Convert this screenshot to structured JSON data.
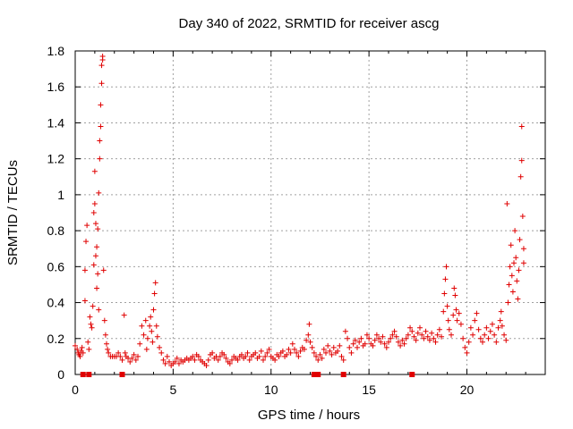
{
  "chart_data": {
    "type": "scatter",
    "title": "Day 340 of 2022, SRMTID for receiver ascg",
    "xlabel": "GPS time / hours",
    "ylabel": "SRMTID / TECUs",
    "xlim": [
      0,
      24
    ],
    "ylim": [
      0,
      1.8
    ],
    "xticks": [
      0,
      5,
      10,
      15,
      20
    ],
    "xtick_labels": [
      "0",
      "5",
      "10",
      "15",
      "20"
    ],
    "yticks": [
      0,
      0.2,
      0.4,
      0.6,
      0.8,
      1.0,
      1.2,
      1.4,
      1.6,
      1.8
    ],
    "ytick_labels": [
      "0",
      "0.2",
      "0.4",
      "0.6",
      "0.8",
      "1",
      "1.2",
      "1.4",
      "1.6",
      "1.8"
    ],
    "grid": true,
    "marker": "plus",
    "color": "#e00000",
    "zero_markers_x": [
      0.4,
      0.7,
      2.4,
      12.2,
      12.4,
      13.7,
      17.2
    ],
    "series": [
      {
        "name": "SRMTID",
        "points": [
          [
            0.0,
            0.16
          ],
          [
            0.1,
            0.14
          ],
          [
            0.15,
            0.12
          ],
          [
            0.2,
            0.11
          ],
          [
            0.25,
            0.1
          ],
          [
            0.3,
            0.13
          ],
          [
            0.35,
            0.15
          ],
          [
            0.4,
            0.12
          ],
          [
            0.5,
            0.41
          ],
          [
            0.5,
            0.58
          ],
          [
            0.55,
            0.74
          ],
          [
            0.6,
            0.83
          ],
          [
            0.65,
            0.18
          ],
          [
            0.7,
            0.14
          ],
          [
            0.75,
            0.32
          ],
          [
            0.8,
            0.28
          ],
          [
            0.85,
            0.26
          ],
          [
            0.9,
            0.38
          ],
          [
            0.95,
            0.61
          ],
          [
            0.95,
            0.9
          ],
          [
            1.0,
            1.13
          ],
          [
            1.0,
            0.95
          ],
          [
            1.05,
            0.66
          ],
          [
            1.05,
            0.84
          ],
          [
            1.1,
            0.48
          ],
          [
            1.1,
            0.71
          ],
          [
            1.15,
            0.56
          ],
          [
            1.15,
            0.81
          ],
          [
            1.2,
            0.36
          ],
          [
            1.2,
            1.01
          ],
          [
            1.25,
            1.2
          ],
          [
            1.25,
            1.3
          ],
          [
            1.3,
            1.38
          ],
          [
            1.3,
            1.5
          ],
          [
            1.35,
            1.62
          ],
          [
            1.35,
            1.72
          ],
          [
            1.4,
            1.75
          ],
          [
            1.4,
            1.77
          ],
          [
            1.45,
            0.58
          ],
          [
            1.5,
            0.3
          ],
          [
            1.55,
            0.22
          ],
          [
            1.6,
            0.17
          ],
          [
            1.65,
            0.14
          ],
          [
            1.7,
            0.12
          ],
          [
            1.8,
            0.1
          ],
          [
            1.9,
            0.1
          ],
          [
            2.0,
            0.1
          ],
          [
            2.1,
            0.1
          ],
          [
            2.2,
            0.12
          ],
          [
            2.3,
            0.1
          ],
          [
            2.4,
            0.08
          ],
          [
            2.5,
            0.33
          ],
          [
            2.55,
            0.12
          ],
          [
            2.6,
            0.1
          ],
          [
            2.7,
            0.09
          ],
          [
            2.8,
            0.07
          ],
          [
            2.9,
            0.09
          ],
          [
            3.0,
            0.11
          ],
          [
            3.1,
            0.08
          ],
          [
            3.2,
            0.1
          ],
          [
            3.3,
            0.17
          ],
          [
            3.4,
            0.27
          ],
          [
            3.5,
            0.22
          ],
          [
            3.6,
            0.3
          ],
          [
            3.65,
            0.14
          ],
          [
            3.7,
            0.2
          ],
          [
            3.8,
            0.27
          ],
          [
            3.85,
            0.32
          ],
          [
            3.9,
            0.24
          ],
          [
            3.95,
            0.18
          ],
          [
            4.0,
            0.36
          ],
          [
            4.05,
            0.45
          ],
          [
            4.1,
            0.51
          ],
          [
            4.15,
            0.27
          ],
          [
            4.2,
            0.21
          ],
          [
            4.3,
            0.15
          ],
          [
            4.4,
            0.12
          ],
          [
            4.5,
            0.08
          ],
          [
            4.6,
            0.06
          ],
          [
            4.7,
            0.1
          ],
          [
            4.8,
            0.07
          ],
          [
            4.9,
            0.05
          ],
          [
            5.0,
            0.06
          ],
          [
            5.1,
            0.07
          ],
          [
            5.2,
            0.09
          ],
          [
            5.3,
            0.06
          ],
          [
            5.4,
            0.08
          ],
          [
            5.5,
            0.07
          ],
          [
            5.6,
            0.08
          ],
          [
            5.7,
            0.09
          ],
          [
            5.8,
            0.08
          ],
          [
            5.9,
            0.09
          ],
          [
            6.0,
            0.1
          ],
          [
            6.1,
            0.08
          ],
          [
            6.2,
            0.11
          ],
          [
            6.3,
            0.1
          ],
          [
            6.4,
            0.08
          ],
          [
            6.5,
            0.07
          ],
          [
            6.6,
            0.06
          ],
          [
            6.7,
            0.05
          ],
          [
            6.8,
            0.08
          ],
          [
            6.9,
            0.11
          ],
          [
            7.0,
            0.12
          ],
          [
            7.1,
            0.09
          ],
          [
            7.2,
            0.1
          ],
          [
            7.3,
            0.08
          ],
          [
            7.4,
            0.1
          ],
          [
            7.5,
            0.12
          ],
          [
            7.6,
            0.11
          ],
          [
            7.7,
            0.09
          ],
          [
            7.8,
            0.07
          ],
          [
            7.9,
            0.06
          ],
          [
            8.0,
            0.08
          ],
          [
            8.1,
            0.1
          ],
          [
            8.2,
            0.09
          ],
          [
            8.3,
            0.08
          ],
          [
            8.4,
            0.1
          ],
          [
            8.5,
            0.11
          ],
          [
            8.6,
            0.09
          ],
          [
            8.7,
            0.1
          ],
          [
            8.8,
            0.12
          ],
          [
            8.9,
            0.08
          ],
          [
            9.0,
            0.1
          ],
          [
            9.1,
            0.11
          ],
          [
            9.2,
            0.12
          ],
          [
            9.3,
            0.09
          ],
          [
            9.4,
            0.1
          ],
          [
            9.5,
            0.13
          ],
          [
            9.6,
            0.08
          ],
          [
            9.7,
            0.1
          ],
          [
            9.8,
            0.12
          ],
          [
            9.9,
            0.14
          ],
          [
            10.0,
            0.1
          ],
          [
            10.1,
            0.09
          ],
          [
            10.2,
            0.08
          ],
          [
            10.3,
            0.11
          ],
          [
            10.4,
            0.1
          ],
          [
            10.5,
            0.12
          ],
          [
            10.6,
            0.13
          ],
          [
            10.7,
            0.1
          ],
          [
            10.8,
            0.11
          ],
          [
            10.9,
            0.14
          ],
          [
            11.0,
            0.12
          ],
          [
            11.1,
            0.17
          ],
          [
            11.2,
            0.14
          ],
          [
            11.3,
            0.12
          ],
          [
            11.4,
            0.1
          ],
          [
            11.5,
            0.13
          ],
          [
            11.6,
            0.15
          ],
          [
            11.7,
            0.14
          ],
          [
            11.8,
            0.19
          ],
          [
            11.9,
            0.22
          ],
          [
            11.95,
            0.28
          ],
          [
            12.0,
            0.18
          ],
          [
            12.1,
            0.15
          ],
          [
            12.2,
            0.12
          ],
          [
            12.3,
            0.1
          ],
          [
            12.4,
            0.08
          ],
          [
            12.5,
            0.11
          ],
          [
            12.6,
            0.09
          ],
          [
            12.7,
            0.14
          ],
          [
            12.8,
            0.12
          ],
          [
            12.9,
            0.16
          ],
          [
            13.0,
            0.13
          ],
          [
            13.1,
            0.11
          ],
          [
            13.2,
            0.15
          ],
          [
            13.3,
            0.12
          ],
          [
            13.4,
            0.13
          ],
          [
            13.5,
            0.16
          ],
          [
            13.6,
            0.1
          ],
          [
            13.7,
            0.08
          ],
          [
            13.8,
            0.24
          ],
          [
            13.9,
            0.2
          ],
          [
            14.0,
            0.15
          ],
          [
            14.1,
            0.12
          ],
          [
            14.2,
            0.17
          ],
          [
            14.3,
            0.19
          ],
          [
            14.4,
            0.15
          ],
          [
            14.5,
            0.18
          ],
          [
            14.6,
            0.2
          ],
          [
            14.7,
            0.16
          ],
          [
            14.8,
            0.17
          ],
          [
            14.9,
            0.22
          ],
          [
            15.0,
            0.2
          ],
          [
            15.1,
            0.17
          ],
          [
            15.2,
            0.16
          ],
          [
            15.3,
            0.19
          ],
          [
            15.4,
            0.22
          ],
          [
            15.5,
            0.2
          ],
          [
            15.6,
            0.18
          ],
          [
            15.7,
            0.21
          ],
          [
            15.8,
            0.17
          ],
          [
            15.9,
            0.15
          ],
          [
            16.0,
            0.18
          ],
          [
            16.1,
            0.2
          ],
          [
            16.2,
            0.22
          ],
          [
            16.3,
            0.24
          ],
          [
            16.4,
            0.21
          ],
          [
            16.5,
            0.18
          ],
          [
            16.6,
            0.16
          ],
          [
            16.7,
            0.19
          ],
          [
            16.8,
            0.17
          ],
          [
            16.9,
            0.2
          ],
          [
            17.0,
            0.22
          ],
          [
            17.1,
            0.26
          ],
          [
            17.2,
            0.24
          ],
          [
            17.3,
            0.21
          ],
          [
            17.4,
            0.19
          ],
          [
            17.5,
            0.23
          ],
          [
            17.6,
            0.26
          ],
          [
            17.7,
            0.22
          ],
          [
            17.8,
            0.2
          ],
          [
            17.9,
            0.24
          ],
          [
            18.0,
            0.21
          ],
          [
            18.1,
            0.19
          ],
          [
            18.2,
            0.23
          ],
          [
            18.3,
            0.2
          ],
          [
            18.4,
            0.18
          ],
          [
            18.5,
            0.22
          ],
          [
            18.6,
            0.25
          ],
          [
            18.7,
            0.21
          ],
          [
            18.8,
            0.35
          ],
          [
            18.85,
            0.45
          ],
          [
            18.9,
            0.53
          ],
          [
            18.95,
            0.6
          ],
          [
            19.0,
            0.38
          ],
          [
            19.05,
            0.3
          ],
          [
            19.1,
            0.25
          ],
          [
            19.2,
            0.22
          ],
          [
            19.3,
            0.33
          ],
          [
            19.35,
            0.48
          ],
          [
            19.4,
            0.44
          ],
          [
            19.45,
            0.36
          ],
          [
            19.5,
            0.3
          ],
          [
            19.6,
            0.34
          ],
          [
            19.7,
            0.28
          ],
          [
            19.8,
            0.2
          ],
          [
            19.9,
            0.15
          ],
          [
            20.0,
            0.12
          ],
          [
            20.1,
            0.18
          ],
          [
            20.2,
            0.26
          ],
          [
            20.3,
            0.22
          ],
          [
            20.4,
            0.3
          ],
          [
            20.5,
            0.34
          ],
          [
            20.6,
            0.25
          ],
          [
            20.7,
            0.2
          ],
          [
            20.8,
            0.18
          ],
          [
            20.9,
            0.22
          ],
          [
            21.0,
            0.26
          ],
          [
            21.1,
            0.2
          ],
          [
            21.2,
            0.24
          ],
          [
            21.3,
            0.28
          ],
          [
            21.4,
            0.22
          ],
          [
            21.5,
            0.18
          ],
          [
            21.6,
            0.26
          ],
          [
            21.7,
            0.3
          ],
          [
            21.75,
            0.35
          ],
          [
            21.8,
            0.27
          ],
          [
            21.9,
            0.22
          ],
          [
            22.0,
            0.19
          ],
          [
            22.05,
            0.95
          ],
          [
            22.1,
            0.4
          ],
          [
            22.15,
            0.5
          ],
          [
            22.2,
            0.6
          ],
          [
            22.25,
            0.72
          ],
          [
            22.3,
            0.55
          ],
          [
            22.35,
            0.46
          ],
          [
            22.4,
            0.62
          ],
          [
            22.45,
            0.8
          ],
          [
            22.5,
            0.65
          ],
          [
            22.55,
            0.52
          ],
          [
            22.6,
            0.42
          ],
          [
            22.65,
            0.58
          ],
          [
            22.7,
            0.75
          ],
          [
            22.75,
            1.1
          ],
          [
            22.8,
            1.19
          ],
          [
            22.8,
            1.38
          ],
          [
            22.85,
            0.88
          ],
          [
            22.9,
            0.7
          ],
          [
            22.9,
            0.62
          ]
        ]
      }
    ]
  }
}
